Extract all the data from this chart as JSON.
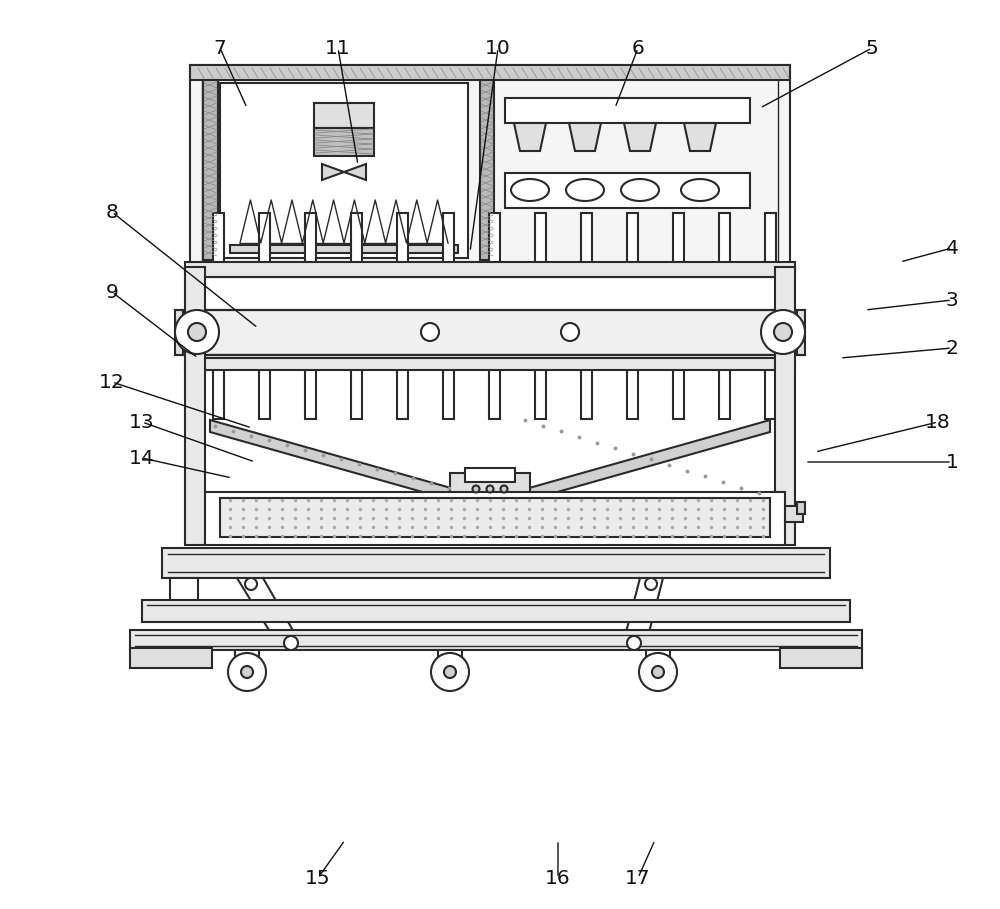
{
  "lc": "#2a2a2a",
  "lw": 1.5,
  "lw_t": 1.0,
  "g1": "#d0d0d0",
  "g2": "#e8e8e8",
  "g3": "#f0f0f0",
  "g4": "#c0c0c0",
  "white": "#ffffff",
  "label_positions": [
    [
      "1",
      952,
      462,
      805,
      462
    ],
    [
      "2",
      952,
      348,
      840,
      358
    ],
    [
      "3",
      952,
      300,
      865,
      310
    ],
    [
      "4",
      952,
      248,
      900,
      262
    ],
    [
      "5",
      872,
      48,
      760,
      108
    ],
    [
      "6",
      638,
      48,
      615,
      108
    ],
    [
      "7",
      220,
      48,
      247,
      108
    ],
    [
      "8",
      112,
      212,
      258,
      328
    ],
    [
      "9",
      112,
      292,
      198,
      358
    ],
    [
      "10",
      498,
      48,
      470,
      252
    ],
    [
      "11",
      338,
      48,
      358,
      165
    ],
    [
      "12",
      112,
      382,
      252,
      428
    ],
    [
      "13",
      142,
      422,
      255,
      462
    ],
    [
      "14",
      142,
      458,
      232,
      478
    ],
    [
      "15",
      318,
      878,
      345,
      840
    ],
    [
      "16",
      558,
      878,
      558,
      840
    ],
    [
      "17",
      638,
      878,
      655,
      840
    ],
    [
      "18",
      938,
      422,
      815,
      452
    ]
  ]
}
